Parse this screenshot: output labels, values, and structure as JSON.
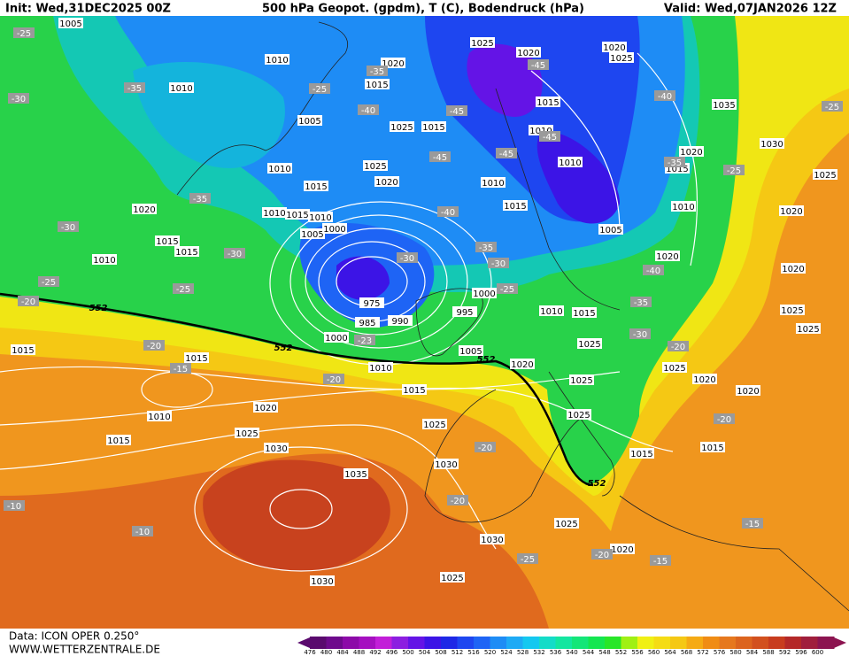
{
  "header": {
    "init": "Init: Wed,31DEC2025 00Z",
    "title": "500 hPa Geopot. (gpdm), T (C), Bodendruck (hPa)",
    "valid": "Valid: Wed,07JAN2026 12Z"
  },
  "footer": {
    "source": "Data: ICON OPER 0.250°",
    "website": "WWW.WETTERZENTRALE.DE"
  },
  "colorbar": {
    "labels": [
      476,
      480,
      484,
      488,
      492,
      496,
      500,
      504,
      508,
      512,
      516,
      520,
      524,
      528,
      532,
      536,
      540,
      544,
      548,
      552,
      556,
      560,
      564,
      568,
      572,
      576,
      580,
      584,
      588,
      592,
      596,
      600
    ],
    "colors": [
      "#5a0a6e",
      "#6e0a8c",
      "#8c0aa8",
      "#a50fc0",
      "#c21ed8",
      "#8c1ee0",
      "#6414e6",
      "#3c14e6",
      "#1e28e6",
      "#1e46f0",
      "#1e64f5",
      "#1e8cf5",
      "#1eaaf5",
      "#14c8f0",
      "#14dcc8",
      "#14e6a0",
      "#14e678",
      "#14e650",
      "#28e628",
      "#a0f014",
      "#f0f014",
      "#f5dc14",
      "#f5c814",
      "#f5aa14",
      "#f08c14",
      "#e6781e",
      "#dc641e",
      "#d2501e",
      "#c83c1e",
      "#b42828",
      "#a01e3c",
      "#8c1450"
    ]
  },
  "isobar_labels": [
    "1005",
    "1010",
    "1010",
    "1005",
    "1010",
    "1015",
    "1020",
    "1015",
    "1015",
    "1010",
    "1010",
    "1015",
    "1010",
    "1005",
    "1000",
    "975",
    "985",
    "990",
    "1000",
    "995",
    "1000",
    "1010",
    "1015",
    "1005",
    "1020",
    "1015",
    "1010",
    "1015",
    "1020",
    "1025",
    "1030",
    "1035",
    "1025",
    "1030",
    "1030",
    "1030",
    "1025",
    "1025",
    "1020",
    "1015",
    "1025",
    "1025",
    "1025",
    "1010",
    "1015",
    "1020",
    "1010",
    "1005",
    "1010",
    "1010",
    "1015",
    "1010",
    "1015",
    "1015",
    "1025",
    "1025",
    "1020",
    "1015",
    "1020",
    "1025",
    "1020",
    "1020",
    "1025",
    "1035",
    "1030",
    "1020",
    "1015",
    "1025",
    "1020",
    "1020",
    "1025",
    "1025",
    "1025",
    "1020",
    "1020",
    "1015",
    "1015"
  ],
  "temperature_labels": [
    "-25",
    "-35",
    "-30",
    "-35",
    "-30",
    "-30",
    "-25",
    "-25",
    "-20",
    "-20",
    "-15",
    "-20",
    "-23",
    "-30",
    "-40",
    "-35",
    "-30",
    "-25",
    "-45",
    "-45",
    "-45",
    "-40",
    "-35",
    "-45",
    "-45",
    "-40",
    "-35",
    "-25",
    "-25",
    "-40",
    "-35",
    "-30",
    "-20",
    "-20",
    "-20",
    "-20",
    "-25",
    "-20",
    "-15",
    "-15",
    "-10",
    "-10",
    "-25"
  ],
  "contour_552_labels": [
    "552",
    "552",
    "552",
    "552"
  ]
}
